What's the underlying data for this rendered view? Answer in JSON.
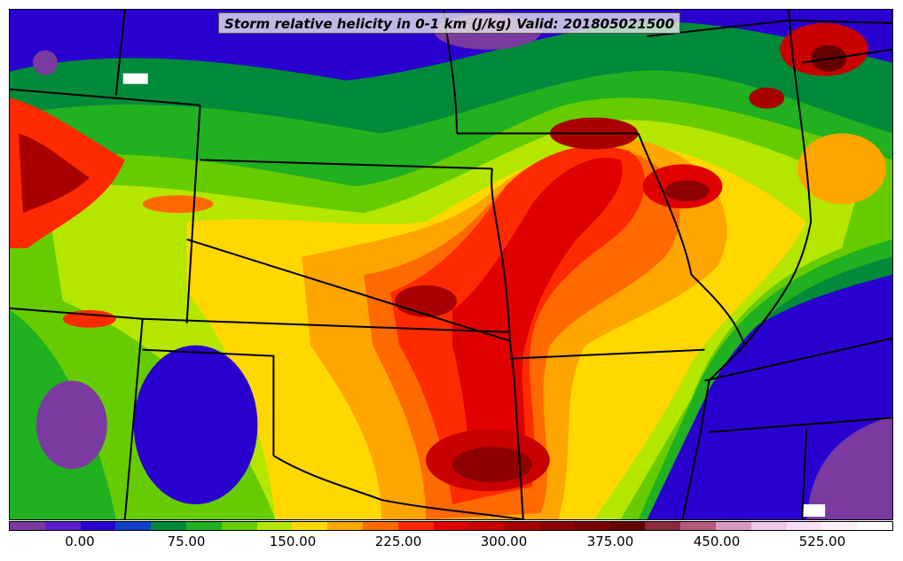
{
  "title": "Storm relative helicity in 0-1 km (J/kg) Valid: 201805021500",
  "colorbar": {
    "colors": [
      "#7b3aa0",
      "#5a1ec8",
      "#2a00d0",
      "#1340c8",
      "#008a3a",
      "#20b020",
      "#66cc00",
      "#b4e600",
      "#ffd800",
      "#ffa500",
      "#ff6a00",
      "#ff2a00",
      "#e00000",
      "#c80000",
      "#a80000",
      "#8c0000",
      "#780000",
      "#640000",
      "#8a2a3a",
      "#b45a7a",
      "#d89ac0",
      "#f0c8e8",
      "#fae0f5",
      "#fdf0fb",
      "#ffffff"
    ],
    "tick_labels": [
      "0.00",
      "75.00",
      "150.00",
      "225.00",
      "300.00",
      "375.00",
      "450.00",
      "525.00"
    ]
  },
  "regions": [
    {
      "name": "plains-green-band",
      "color": "#66cc00"
    },
    {
      "name": "central-yellow",
      "color": "#ffd800"
    },
    {
      "name": "kansas-red-core",
      "color": "#ff2a00"
    },
    {
      "name": "oklahoma-darkred",
      "color": "#a80000"
    },
    {
      "name": "illinois-max",
      "color": "#8c0000"
    },
    {
      "name": "southeast-blue",
      "color": "#2a00d0"
    },
    {
      "name": "southeast-purple",
      "color": "#7b3aa0"
    }
  ]
}
